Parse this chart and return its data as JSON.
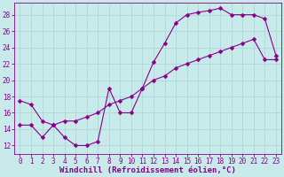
{
  "xlabel": "Windchill (Refroidissement éolien,°C)",
  "bg_color": "#c8eaea",
  "grid_color": "#b0d8d8",
  "line_color": "#880088",
  "hours": [
    0,
    1,
    2,
    3,
    4,
    5,
    6,
    7,
    8,
    9,
    10,
    11,
    12,
    13,
    14,
    15,
    16,
    17,
    18,
    19,
    20,
    21,
    22,
    23
  ],
  "series1": [
    17.5,
    17.0,
    15.0,
    14.5,
    13.0,
    12.0,
    12.0,
    12.5,
    19.0,
    16.0,
    16.0,
    19.0,
    22.2,
    24.5,
    27.0,
    28.0,
    28.3,
    28.5,
    28.8,
    28.0,
    28.0,
    28.0,
    27.5,
    23.0
  ],
  "series2": [
    14.5,
    14.5,
    13.0,
    14.5,
    15.0,
    15.0,
    15.5,
    16.0,
    17.0,
    17.5,
    18.0,
    19.0,
    20.0,
    20.5,
    21.5,
    22.0,
    22.5,
    23.0,
    23.5,
    24.0,
    24.5,
    25.0,
    22.5,
    22.5
  ],
  "xlim": [
    -0.5,
    23.5
  ],
  "ylim": [
    11,
    29.5
  ],
  "yticks": [
    12,
    14,
    16,
    18,
    20,
    22,
    24,
    26,
    28
  ],
  "xticks": [
    0,
    1,
    2,
    3,
    4,
    5,
    6,
    7,
    8,
    9,
    10,
    11,
    12,
    13,
    14,
    15,
    16,
    17,
    18,
    19,
    20,
    21,
    22,
    23
  ],
  "tick_fontsize": 5.5,
  "xlabel_fontsize": 6.5,
  "markersize": 2.5
}
